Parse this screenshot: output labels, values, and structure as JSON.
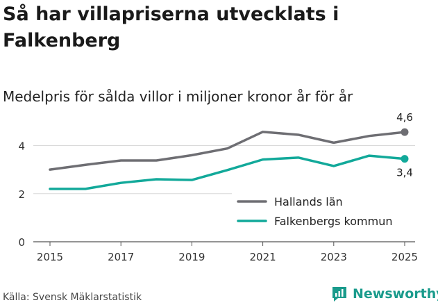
{
  "title": "Så har villapriserna utvecklats i Falkenberg",
  "subtitle": "Medelpris för sålda villor i miljoner kronor år för år",
  "source": "Källa: Svensk Mäklarstatistik",
  "brand": "Newsworthy",
  "colors": {
    "hallands": "#6e6e73",
    "falkenberg": "#12a99a",
    "grid": "#d9d9d9",
    "brand": "#1a9b8c"
  },
  "chart_data": {
    "type": "line",
    "x": [
      2015,
      2016,
      2017,
      2018,
      2019,
      2020,
      2021,
      2022,
      2023,
      2024,
      2025
    ],
    "series": [
      {
        "name": "Hallands län",
        "values": [
          3.0,
          3.2,
          3.38,
          3.38,
          3.6,
          3.88,
          4.57,
          4.45,
          4.12,
          4.4,
          4.56
        ],
        "end_label": "4,6"
      },
      {
        "name": "Falkenbergs kommun",
        "values": [
          2.2,
          2.2,
          2.45,
          2.6,
          2.57,
          2.98,
          3.42,
          3.5,
          3.15,
          3.58,
          3.45
        ],
        "end_label": "3,4"
      }
    ],
    "x_ticks": [
      "2015",
      "2017",
      "2019",
      "2021",
      "2023",
      "2025"
    ],
    "y_ticks": [
      "0",
      "2",
      "4"
    ],
    "ylim": [
      0,
      5.2
    ],
    "grid": true,
    "legend": "lower-right"
  }
}
